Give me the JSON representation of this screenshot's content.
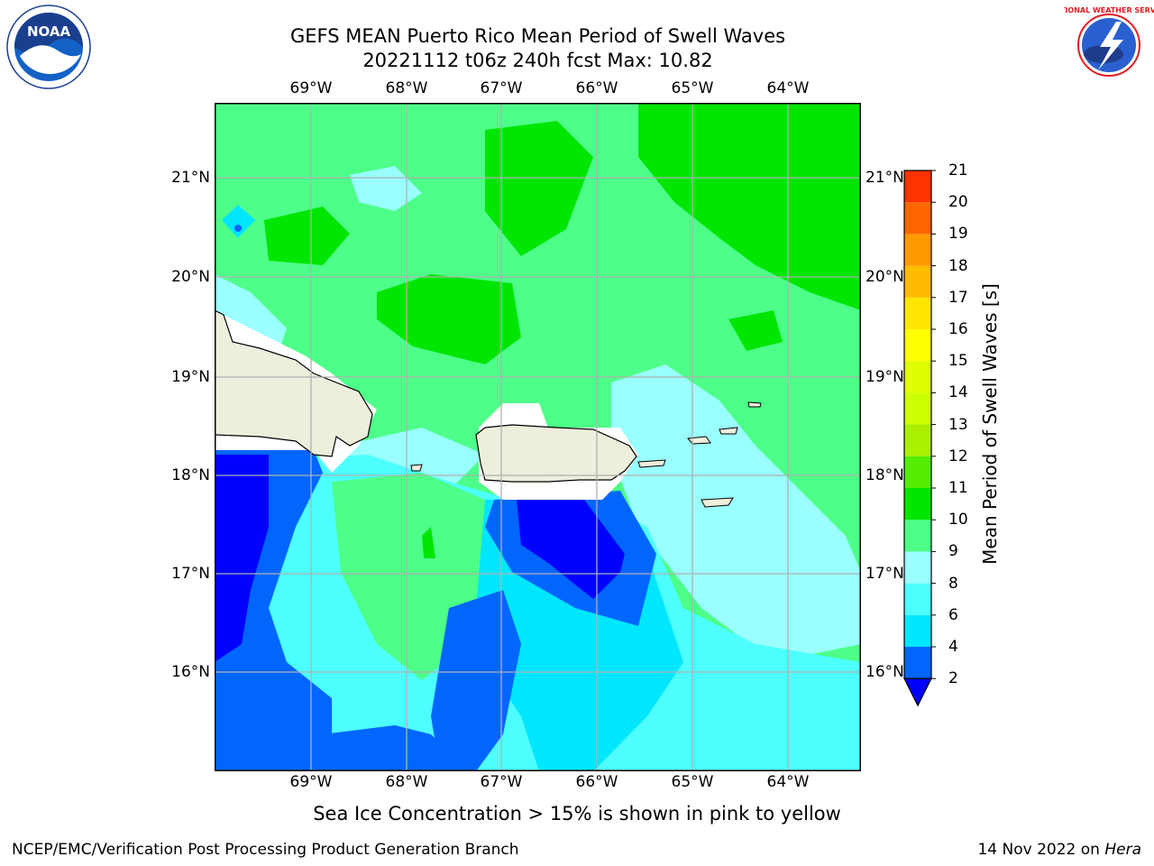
{
  "title": {
    "line1": "GEFS MEAN Puerto Rico Mean Period of Swell Waves",
    "line2": "20221112 t06z 240h fcst   Max: 10.82"
  },
  "map": {
    "lon_ticks": [
      "69°W",
      "68°W",
      "67°W",
      "66°W",
      "65°W",
      "64°W"
    ],
    "lat_ticks": [
      "21°N",
      "20°N",
      "19°N",
      "18°N",
      "17°N",
      "16°N"
    ],
    "land_color": "#eeeedd",
    "water_masked_color": "#ffffff"
  },
  "colorbar": {
    "label": "Mean Period of Swell Waves [s]",
    "ticks": [
      "2",
      "4",
      "6",
      "8",
      "9",
      "10",
      "11",
      "12",
      "13",
      "14",
      "15",
      "16",
      "17",
      "18",
      "19",
      "20",
      "21"
    ],
    "colors": [
      "#0066ff",
      "#00e6ff",
      "#4dffff",
      "#99ffff",
      "#4dff88",
      "#00e600",
      "#55ee00",
      "#aaee00",
      "#ccff00",
      "#ddff00",
      "#ffff00",
      "#ffe600",
      "#ffbb00",
      "#ff9900",
      "#ff6600",
      "#ff3300"
    ],
    "extend_color": "#0000ff"
  },
  "note": "Sea Ice Concentration > 15% is shown in pink to yellow",
  "footer": {
    "left": "NCEP/EMC/Verification Post Processing Product Generation Branch",
    "date": "14 Nov 2022 on ",
    "host": "Hera"
  },
  "logos": {
    "noaa": {
      "icon": "noaa-logo",
      "text": "NOAA"
    },
    "nws": {
      "icon": "nws-logo",
      "text": "NATIONAL WEATHER SERVICE"
    }
  }
}
